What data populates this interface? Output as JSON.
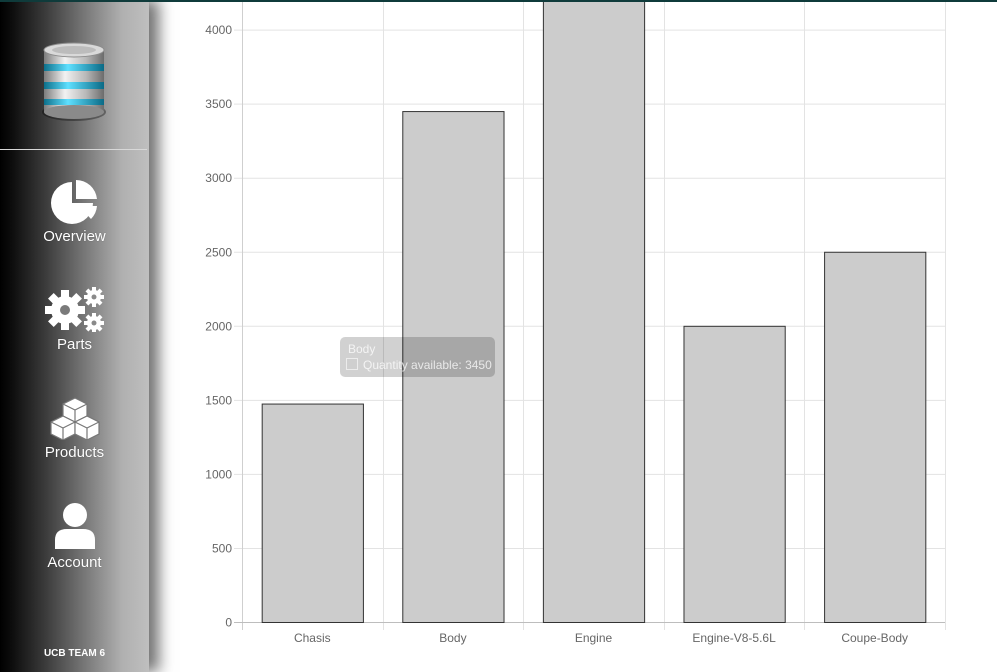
{
  "sidebar": {
    "logo_icon": "database-icon",
    "items": [
      {
        "label": "Overview",
        "icon": "pie-chart-icon"
      },
      {
        "label": "Parts",
        "icon": "gears-icon"
      },
      {
        "label": "Products",
        "icon": "cubes-icon"
      },
      {
        "label": "Account",
        "icon": "user-icon"
      }
    ],
    "footer": "UCB TEAM 6"
  },
  "tooltip": {
    "title": "Body",
    "label": "Quantity available",
    "value": "3450"
  },
  "chart_data": {
    "type": "bar",
    "categories": [
      "Chasis",
      "Body",
      "Engine",
      "Engine-V8-5.6L",
      "Coupe-Body"
    ],
    "values": [
      1475,
      3450,
      4200,
      2000,
      2500
    ],
    "yticks": [
      0,
      500,
      1000,
      1500,
      2000,
      2500,
      3000,
      3500,
      4000
    ],
    "ylim": [
      0,
      4200
    ],
    "grid": true,
    "bar_color": "#cccccc",
    "bar_border": "#333333"
  }
}
